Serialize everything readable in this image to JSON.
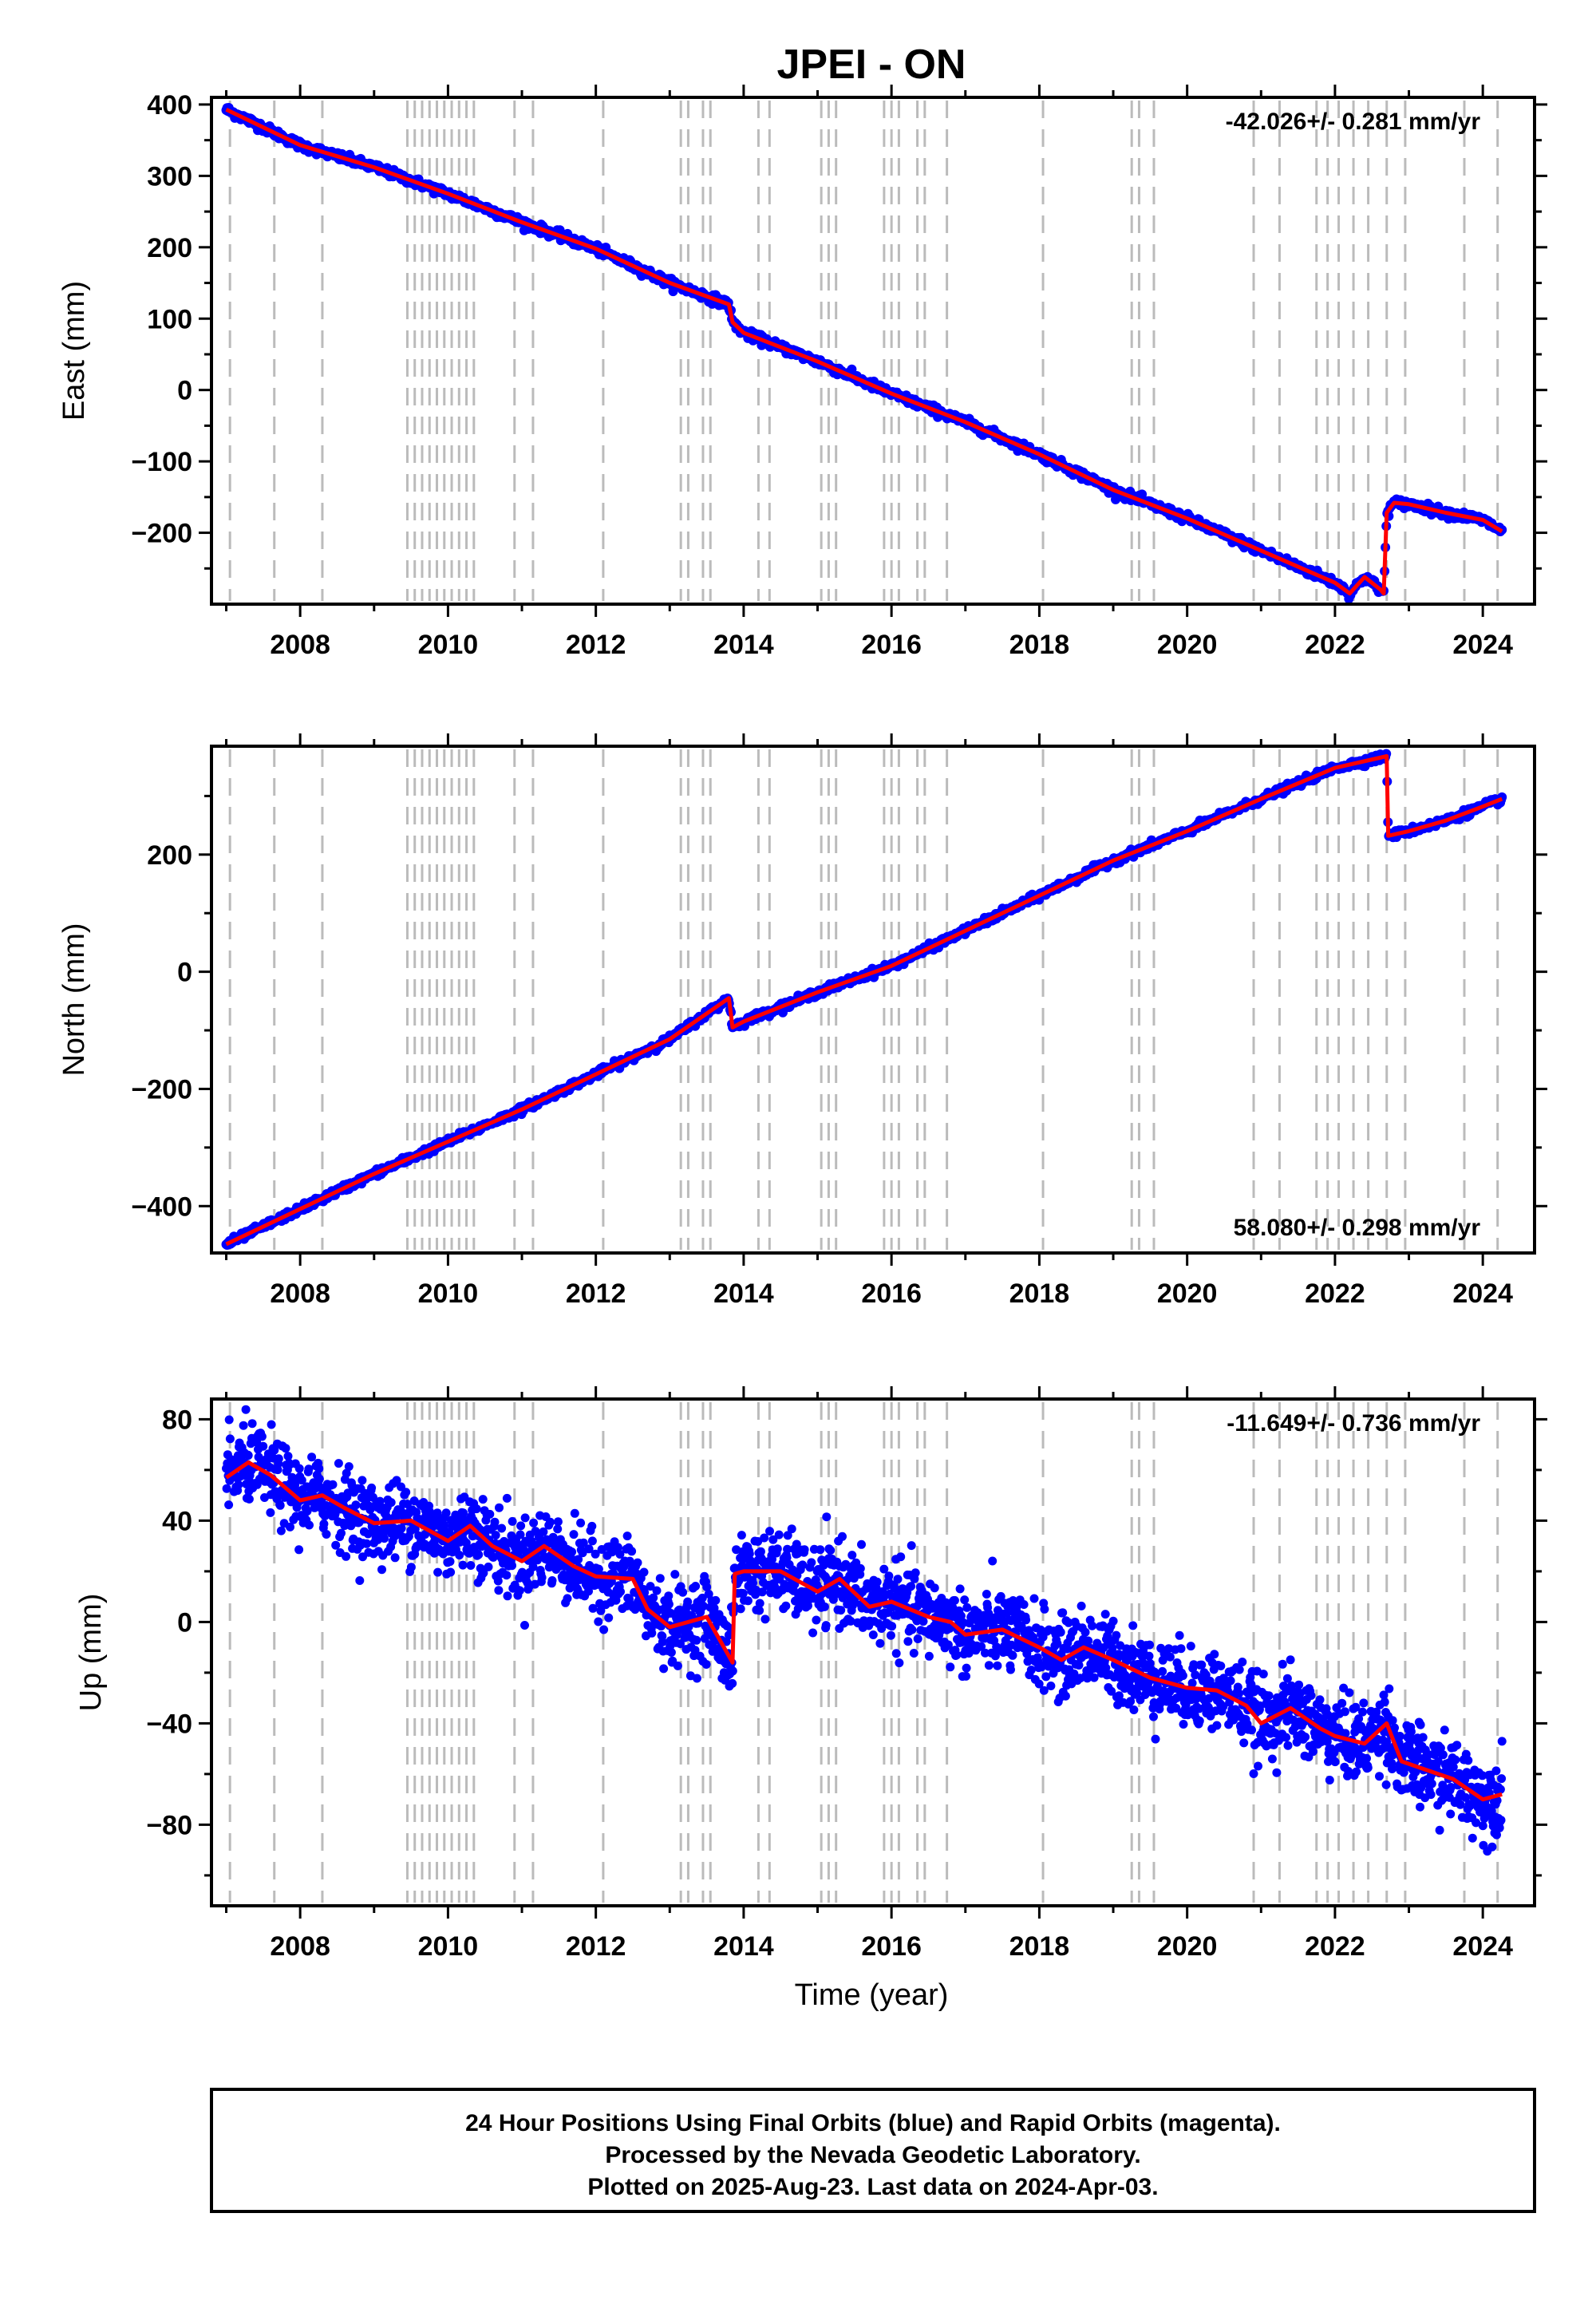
{
  "title": "JPEI - ON",
  "xlabel": "Time (year)",
  "footer": {
    "line1": "24 Hour Positions Using Final Orbits (blue) and Rapid Orbits (magenta).",
    "line2": "Processed by the Nevada Geodetic Laboratory.",
    "line3": "Plotted on 2025-Aug-23. Last data on 2024-Apr-03."
  },
  "colors": {
    "points": "#0000ff",
    "fit": "#ff0000",
    "events": "#bbbbbb",
    "frame": "#000000"
  },
  "chart_data": [
    {
      "type": "scatter",
      "panel": "east",
      "ylabel": "East (mm)",
      "rate": "-42.026+/- 0.281 mm/yr",
      "rate_position": "top-right",
      "xlim": [
        2006.8,
        2024.7
      ],
      "ylim": [
        -300,
        410
      ],
      "xticks": [
        2008,
        2010,
        2012,
        2014,
        2016,
        2018,
        2020,
        2022,
        2024
      ],
      "yticks": [
        -200,
        -100,
        0,
        100,
        200,
        300,
        400
      ],
      "scatter_spread": 5,
      "series": [
        {
          "x": [
            2007.0,
            2008.0,
            2009.0,
            2010.0,
            2011.0,
            2012.0,
            2013.0,
            2013.8,
            2013.85,
            2014.0,
            2015.0,
            2016.0,
            2017.0,
            2018.0,
            2019.0,
            2020.0,
            2021.0,
            2022.0,
            2022.2,
            2022.4,
            2022.62,
            2022.66,
            2022.7,
            2022.8,
            2023.0,
            2023.5,
            2024.0,
            2024.26
          ],
          "y": [
            393,
            343,
            312,
            275,
            235,
            198,
            150,
            120,
            95,
            80,
            40,
            -5,
            -45,
            -90,
            -140,
            -180,
            -225,
            -270,
            -285,
            -262,
            -280,
            -285,
            -172,
            -158,
            -160,
            -172,
            -182,
            -198
          ]
        }
      ]
    },
    {
      "type": "scatter",
      "panel": "north",
      "ylabel": "North (mm)",
      "rate": "58.080+/- 0.298 mm/yr",
      "rate_position": "bottom-right",
      "xlim": [
        2006.8,
        2024.7
      ],
      "ylim": [
        -480,
        385
      ],
      "xticks": [
        2008,
        2010,
        2012,
        2014,
        2016,
        2018,
        2020,
        2022,
        2024
      ],
      "yticks": [
        -400,
        -200,
        0,
        200
      ],
      "scatter_spread": 5,
      "series": [
        {
          "x": [
            2007.0,
            2008.0,
            2009.0,
            2010.0,
            2011.0,
            2012.0,
            2013.0,
            2013.8,
            2013.85,
            2014.0,
            2015.0,
            2016.0,
            2017.0,
            2018.0,
            2019.0,
            2020.0,
            2021.0,
            2022.0,
            2022.7,
            2022.72,
            2023.0,
            2023.5,
            2024.0,
            2024.26
          ],
          "y": [
            -465,
            -405,
            -345,
            -290,
            -235,
            -175,
            -115,
            -45,
            -95,
            -85,
            -35,
            10,
            70,
            130,
            190,
            240,
            295,
            348,
            368,
            232,
            240,
            258,
            282,
            295
          ]
        }
      ]
    },
    {
      "type": "scatter",
      "panel": "up",
      "ylabel": "Up (mm)",
      "rate": "-11.649+/- 0.736 mm/yr",
      "rate_position": "top-right",
      "xlim": [
        2006.8,
        2024.7
      ],
      "ylim": [
        -112,
        88
      ],
      "xticks": [
        2008,
        2010,
        2012,
        2014,
        2016,
        2018,
        2020,
        2022,
        2024
      ],
      "yticks": [
        -80,
        -40,
        0,
        40,
        80
      ],
      "scatter_spread": 14,
      "series": [
        {
          "x": [
            2007.0,
            2007.3,
            2007.6,
            2008.0,
            2008.3,
            2008.6,
            2009.0,
            2009.5,
            2010.0,
            2010.3,
            2010.6,
            2011.0,
            2011.3,
            2011.7,
            2012.0,
            2012.5,
            2012.7,
            2013.0,
            2013.5,
            2013.85,
            2013.88,
            2014.0,
            2014.5,
            2015.0,
            2015.3,
            2015.7,
            2016.0,
            2016.5,
            2016.8,
            2017.0,
            2017.5,
            2018.0,
            2018.3,
            2018.6,
            2019.0,
            2019.5,
            2020.0,
            2020.4,
            2020.8,
            2021.0,
            2021.4,
            2021.8,
            2022.0,
            2022.4,
            2022.7,
            2022.9,
            2023.2,
            2023.6,
            2024.0,
            2024.26
          ],
          "y": [
            57,
            63,
            58,
            48,
            50,
            45,
            39,
            40,
            32,
            38,
            30,
            24,
            30,
            22,
            18,
            17,
            5,
            -2,
            2,
            -16,
            19,
            20,
            20,
            12,
            17,
            6,
            8,
            2,
            0,
            -5,
            -3,
            -10,
            -15,
            -10,
            -15,
            -22,
            -26,
            -27,
            -33,
            -40,
            -34,
            -42,
            -45,
            -48,
            -40,
            -55,
            -58,
            -62,
            -70,
            -68
          ]
        }
      ]
    }
  ],
  "event_lines": [
    2007.05,
    2007.65,
    2008.3,
    2009.45,
    2009.55,
    2009.65,
    2009.75,
    2009.85,
    2009.95,
    2010.05,
    2010.15,
    2010.25,
    2010.35,
    2010.9,
    2011.15,
    2012.1,
    2013.15,
    2013.25,
    2013.45,
    2013.55,
    2014.2,
    2014.35,
    2015.05,
    2015.15,
    2015.25,
    2015.9,
    2016.0,
    2016.1,
    2016.35,
    2016.45,
    2016.75,
    2018.05,
    2019.25,
    2019.35,
    2019.55,
    2020.9,
    2021.25,
    2021.75,
    2021.9,
    2022.05,
    2022.25,
    2022.45,
    2022.7,
    2022.95,
    2023.75,
    2024.2
  ]
}
